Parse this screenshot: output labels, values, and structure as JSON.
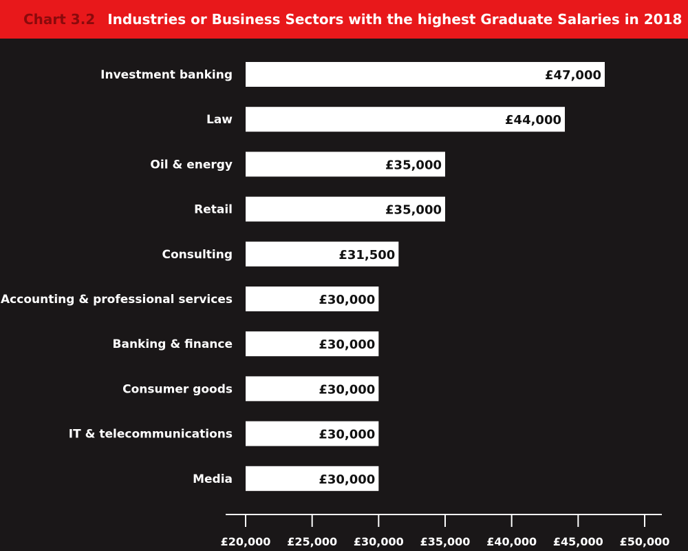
{
  "header": {
    "chart_number": "Chart 3.2",
    "title": "Industries or Business Sectors with the highest Graduate Salaries in 2018"
  },
  "colors": {
    "background": "#1a1718",
    "title_bar": "#e8181b",
    "bar": "#ffffff"
  },
  "chart_data": {
    "type": "bar",
    "orientation": "horizontal",
    "title": "Industries or Business Sectors with the highest Graduate Salaries in 2018",
    "categories": [
      "Investment banking",
      "Law",
      "Oil & energy",
      "Retail",
      "Consulting",
      "Accounting & professional services",
      "Banking & finance",
      "Consumer goods",
      "IT & telecommunications",
      "Media"
    ],
    "values": [
      47000,
      44000,
      35000,
      35000,
      31500,
      30000,
      30000,
      30000,
      30000,
      30000
    ],
    "value_labels": [
      "£47,000",
      "£44,000",
      "£35,000",
      "£35,000",
      "£31,500",
      "£30,000",
      "£30,000",
      "£30,000",
      "£30,000",
      "£30,000"
    ],
    "xlim": [
      20000,
      50000
    ],
    "xticks": [
      20000,
      25000,
      30000,
      35000,
      40000,
      45000,
      50000
    ],
    "xtick_labels": [
      "£20,000",
      "£25,000",
      "£30,000",
      "£35,000",
      "£40,000",
      "£45,000",
      "£50,000"
    ],
    "xlabel": "",
    "ylabel": "",
    "grid": false
  }
}
